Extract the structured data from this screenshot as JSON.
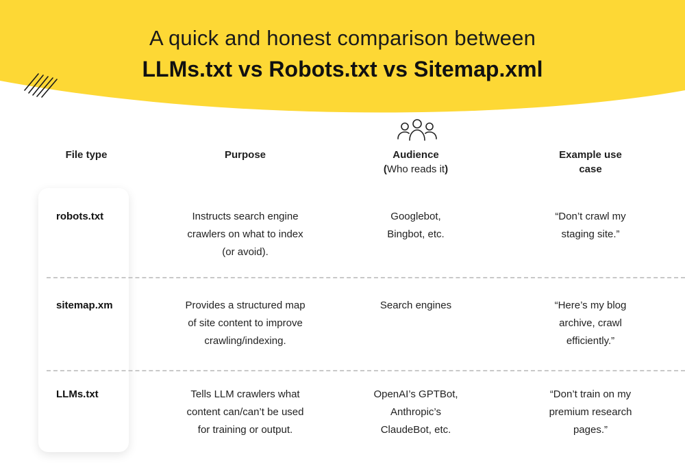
{
  "header": {
    "title_line1": "A quick and honest comparison between",
    "title_line2": "LLMs.txt vs Robots.txt vs Sitemap.xml"
  },
  "colors": {
    "banner": "#FDD835",
    "text": "#1f1f1f",
    "divider": "#c8c8c8"
  },
  "columns": {
    "file_type": "File type",
    "purpose": "Purpose",
    "audience": "Audience",
    "audience_sub_open": "(",
    "audience_sub_text": "Who reads it",
    "audience_sub_close": ")",
    "example_line1": "Example use",
    "example_line2": "case"
  },
  "icons": {
    "audience": "people-group-icon",
    "decoration": "hatch-lines-icon"
  },
  "rows": [
    {
      "file": "robots.txt",
      "purpose": [
        "Instructs search engine",
        "crawlers on what to index",
        "(or avoid)."
      ],
      "audience": [
        "Googlebot,",
        "Bingbot, etc."
      ],
      "example": [
        "“Don’t crawl my",
        "staging site.”"
      ]
    },
    {
      "file": "sitemap.xm",
      "purpose": [
        "Provides a structured map",
        "of site content to improve",
        "crawling/indexing."
      ],
      "audience": [
        "Search engines"
      ],
      "example": [
        "“Here’s my blog",
        "archive, crawl",
        "efficiently.”"
      ]
    },
    {
      "file": "LLMs.txt",
      "purpose": [
        "Tells LLM crawlers what",
        "content can/can’t be used",
        "for training or output."
      ],
      "audience": [
        "OpenAI’s GPTBot,",
        "Anthropic’s",
        "ClaudeBot, etc."
      ],
      "example": [
        "“Don’t train on my",
        "premium research",
        "pages.”"
      ]
    }
  ]
}
